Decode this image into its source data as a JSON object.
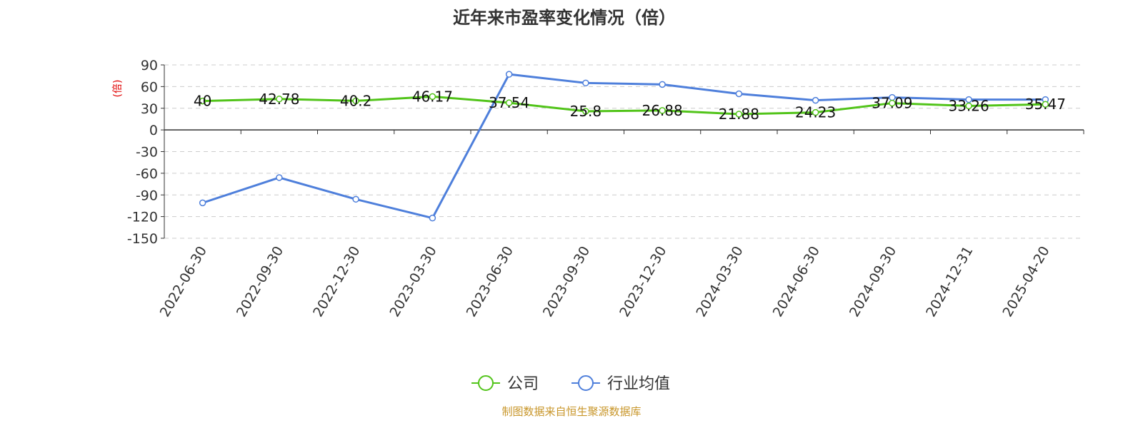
{
  "chart_data": {
    "type": "line",
    "title": "近年来市盈率变化情况（倍）",
    "ylabel": "(倍)",
    "xlabel": "",
    "categories": [
      "2022-06-30",
      "2022-09-30",
      "2022-12-30",
      "2023-03-30",
      "2023-06-30",
      "2023-09-30",
      "2023-12-30",
      "2024-03-30",
      "2024-06-30",
      "2024-09-30",
      "2024-12-31",
      "2025-04-20"
    ],
    "yticks": [
      90,
      60,
      30,
      0,
      -30,
      -60,
      -90,
      -120,
      -150
    ],
    "ylim": [
      -150,
      90
    ],
    "grid": true,
    "legend_position": "bottom-center",
    "series": [
      {
        "name": "公司",
        "color": "#52c41a",
        "values": [
          40,
          42.78,
          40.2,
          46.17,
          37.54,
          25.8,
          26.88,
          21.88,
          24.23,
          37.09,
          33.26,
          35.47
        ],
        "labels": [
          "40",
          "42.78",
          "40.2",
          "46.17",
          "37.54",
          "25.8",
          "26.88",
          "21.88",
          "24.23",
          "37.09",
          "33.26",
          "35.47"
        ]
      },
      {
        "name": "行业均值",
        "color": "#4e7fdb",
        "values": [
          -101,
          -66,
          -96,
          -122,
          77,
          65,
          63,
          50,
          41,
          45,
          42,
          42
        ]
      }
    ]
  },
  "footer": {
    "source": "制图数据来自恒生聚源数据库"
  }
}
